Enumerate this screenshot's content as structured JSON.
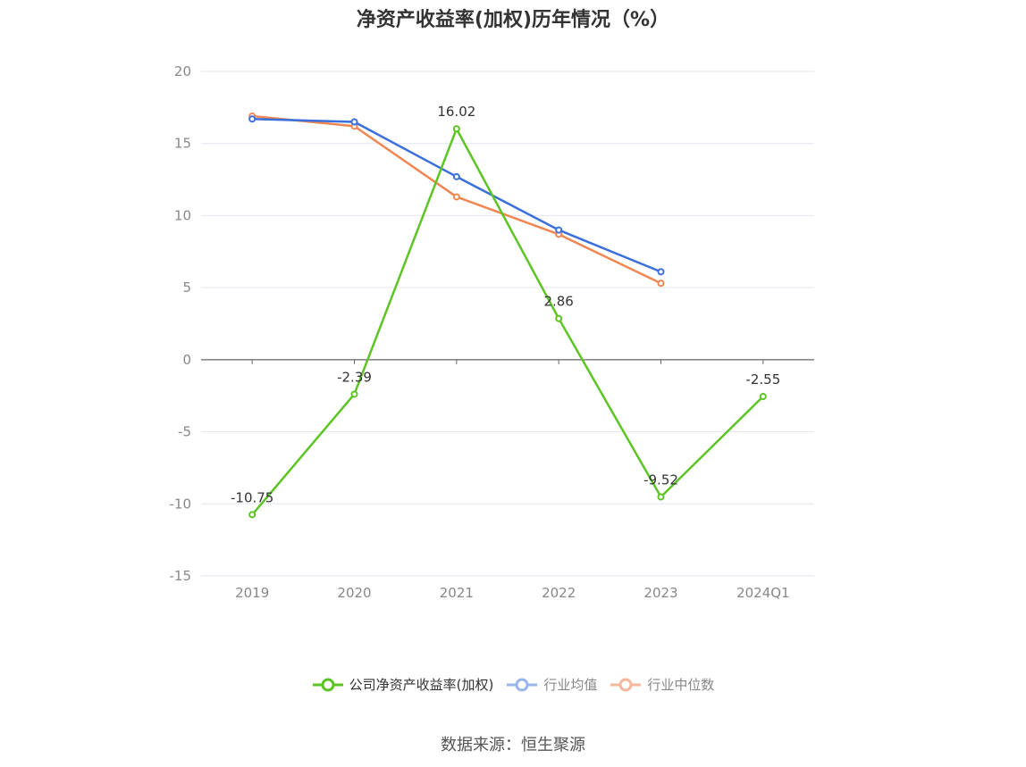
{
  "chart_data": {
    "type": "line",
    "title": "净资产收益率(加权)历年情况（%）",
    "categories": [
      "2019",
      "2020",
      "2021",
      "2022",
      "2023",
      "2024Q1"
    ],
    "ylim": [
      -15,
      20
    ],
    "yticks": [
      -15,
      -10,
      -5,
      0,
      5,
      10,
      15,
      20
    ],
    "grid": true,
    "legend_position": "bottom",
    "series": [
      {
        "name": "公司净资产收益率(加权)",
        "color": "#5cc424",
        "values": [
          -10.75,
          -2.39,
          16.02,
          2.86,
          -9.52,
          -2.55
        ],
        "labels": [
          "-10.75",
          "-2.39",
          "16.02",
          "2.86",
          "-9.52",
          "-2.55"
        ]
      },
      {
        "name": "行业均值",
        "color": "#3a6fdc",
        "values": [
          16.7,
          16.5,
          12.7,
          9.0,
          6.1,
          null
        ]
      },
      {
        "name": "行业中位数",
        "color": "#f08652",
        "values": [
          16.9,
          16.2,
          11.3,
          8.7,
          5.3,
          null
        ]
      }
    ]
  },
  "source": "数据来源：恒生聚源"
}
